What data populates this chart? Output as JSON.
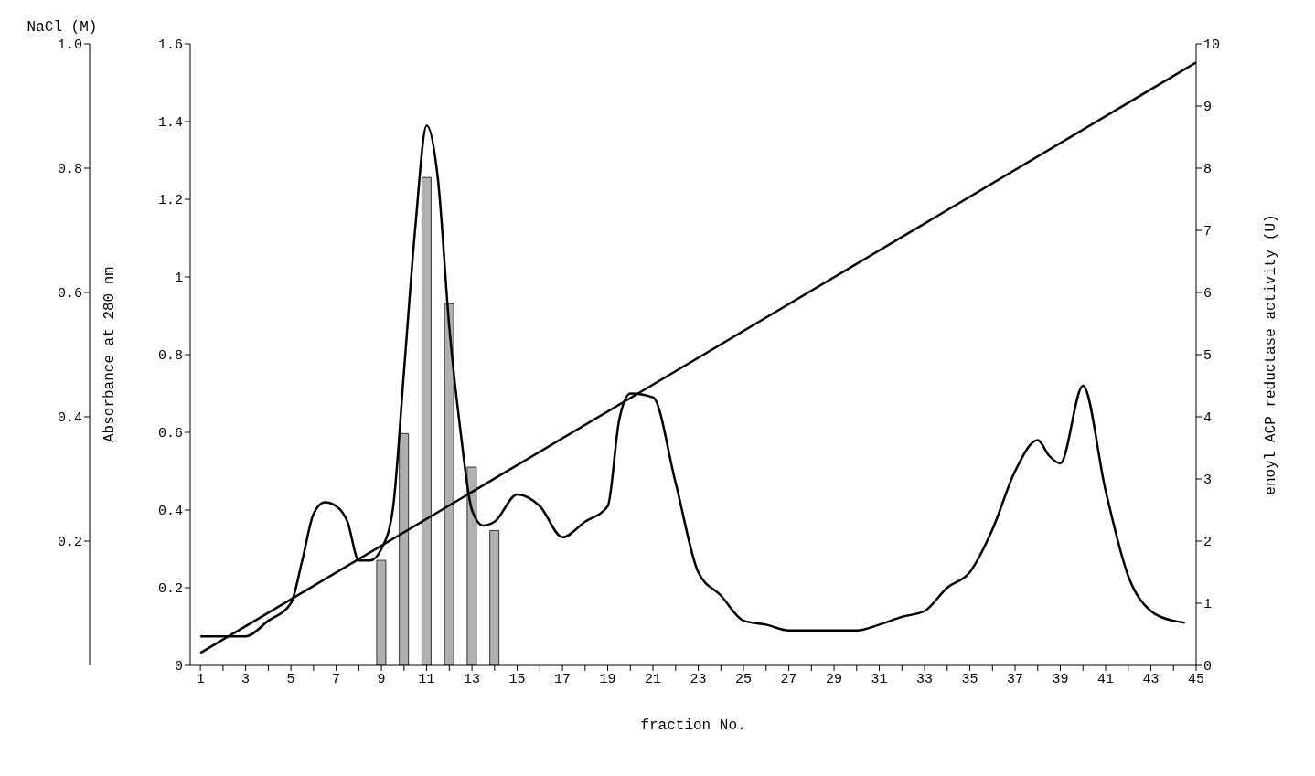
{
  "chart_data": {
    "type": "line",
    "xlabel": "fraction No.",
    "ylabel": "Absorbance at 280 nm",
    "y2label": "enoyl ACP reductase activity (U)",
    "y3label": "NaCl (M)",
    "xlim": [
      0.55,
      45
    ],
    "xticks": [
      1,
      {
        "value": 2,
        "label": null
      },
      3,
      {
        "value": 4,
        "label": null
      },
      5,
      {
        "value": 6,
        "label": null
      },
      7,
      {
        "value": 8,
        "label": null
      },
      9,
      {
        "value": 10,
        "label": null
      },
      11,
      {
        "value": 12,
        "label": null
      },
      13,
      {
        "value": 14,
        "label": null
      },
      15,
      {
        "value": 16,
        "label": null
      },
      17,
      {
        "value": 18,
        "label": null
      },
      19,
      {
        "value": 20,
        "label": null
      },
      21,
      {
        "value": 22,
        "label": null
      },
      23,
      {
        "value": 24,
        "label": null
      },
      25,
      {
        "value": 26,
        "label": null
      },
      27,
      {
        "value": 28,
        "label": null
      },
      29,
      {
        "value": 30,
        "label": null
      },
      31,
      {
        "value": 32,
        "label": null
      },
      33,
      {
        "value": 34,
        "label": null
      },
      35,
      {
        "value": 36,
        "label": null
      },
      37,
      {
        "value": 38,
        "label": null
      },
      39,
      {
        "value": 40,
        "label": null
      },
      41,
      {
        "value": 42,
        "label": null
      },
      43,
      {
        "value": 44,
        "label": null
      },
      45
    ],
    "ylim": [
      0,
      1.6
    ],
    "yticks": [
      0,
      0.2,
      0.4,
      0.6,
      0.8,
      1,
      1.2,
      1.4,
      1.6
    ],
    "y3lim": [
      0,
      1
    ],
    "y3ticks": [
      0.2,
      0.4,
      0.6,
      0.8,
      {
        "value": 1,
        "label": "1.0"
      }
    ],
    "y2lim": [
      0,
      10
    ],
    "y2ticks": [
      0,
      1,
      2,
      3,
      4,
      5,
      6,
      7,
      8,
      9,
      10
    ],
    "grid": false,
    "legend": false,
    "series": [
      {
        "type": "bar",
        "axis": "y2",
        "color": "#b0b0b0",
        "x": [
          9,
          10,
          11,
          12,
          13,
          14
        ],
        "values": [
          1.69,
          3.73,
          7.85,
          5.82,
          3.19,
          2.17
        ]
      },
      {
        "color": "#000000",
        "x": [
          1,
          3,
          4,
          5,
          5.5,
          6,
          6.5,
          7,
          7.5,
          8,
          8.5,
          9,
          9.5,
          10,
          10.5,
          11,
          11.5,
          12,
          12.5,
          13,
          13.5,
          14,
          15,
          16,
          17,
          18,
          19,
          19.5,
          20,
          21,
          22,
          23,
          24,
          25,
          26,
          27,
          28,
          29,
          30,
          31,
          32,
          33,
          34,
          35,
          36,
          37,
          38,
          38.5,
          39,
          40,
          41,
          42,
          43,
          44,
          44.5
        ],
        "values": [
          0.075,
          0.075,
          0.115,
          0.16,
          0.27,
          0.39,
          0.42,
          0.41,
          0.37,
          0.27,
          0.27,
          0.3,
          0.4,
          0.76,
          1.13,
          1.39,
          1.25,
          0.87,
          0.6,
          0.4,
          0.36,
          0.37,
          0.44,
          0.41,
          0.33,
          0.37,
          0.41,
          0.63,
          0.7,
          0.69,
          0.47,
          0.24,
          0.18,
          0.115,
          0.105,
          0.09,
          0.09,
          0.09,
          0.09,
          0.105,
          0.125,
          0.14,
          0.2,
          0.24,
          0.35,
          0.5,
          0.58,
          0.54,
          0.52,
          0.72,
          0.45,
          0.23,
          0.14,
          0.115,
          0.11
        ]
      },
      {
        "axis": "y3",
        "color": "#000000",
        "x": [
          1,
          45
        ],
        "values": [
          0.02,
          0.97
        ]
      }
    ]
  }
}
